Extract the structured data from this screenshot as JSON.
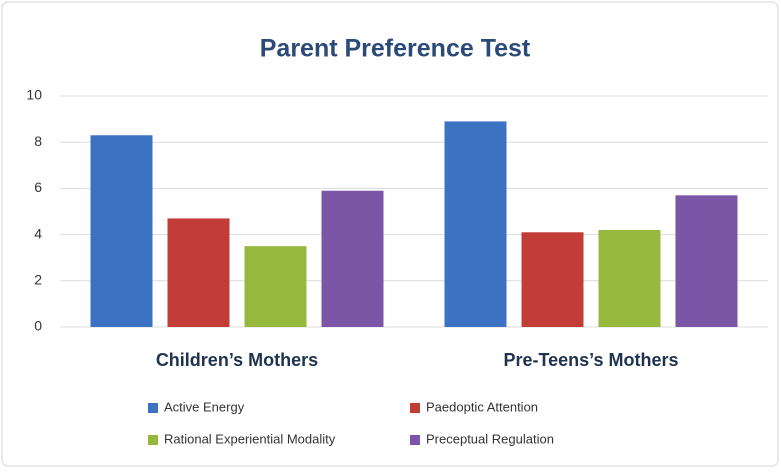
{
  "chart_data": {
    "type": "bar",
    "title": "Parent Preference Test",
    "categories": [
      "Children’s Mothers",
      "Pre-Teens’s Mothers"
    ],
    "series": [
      {
        "name": "Active Energy",
        "color": "#3b73c2",
        "values": [
          8.3,
          8.9
        ]
      },
      {
        "name": "Paedoptic Attention",
        "color": "#c23c38",
        "values": [
          4.7,
          4.1
        ]
      },
      {
        "name": "Rational Experiential Modality",
        "color": "#96b83c",
        "values": [
          3.5,
          4.2
        ]
      },
      {
        "name": "Preceptual Regulation",
        "color": "#7b55a6",
        "values": [
          5.9,
          5.7
        ]
      }
    ],
    "ylim": [
      0,
      10
    ],
    "yticks": [
      0,
      2,
      4,
      6,
      8,
      10
    ],
    "grid": true,
    "legend": "bottom"
  }
}
